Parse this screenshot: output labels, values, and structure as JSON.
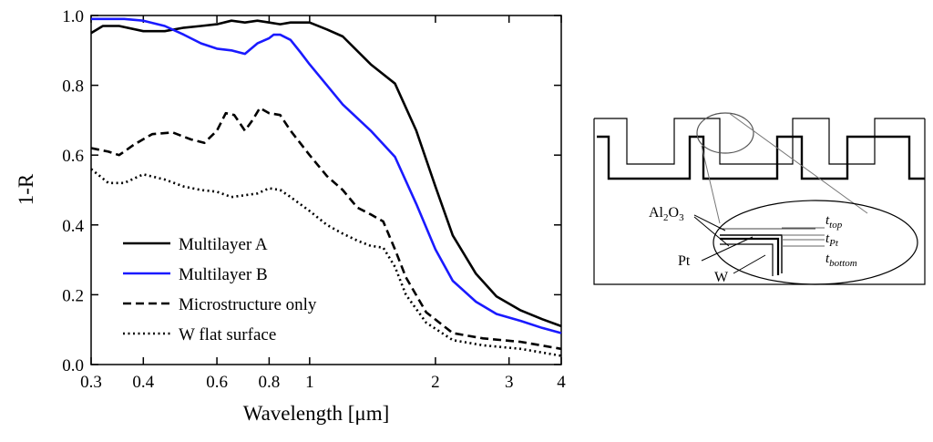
{
  "chart_data": {
    "type": "line",
    "xscale": "log",
    "xlabel": "Wavelength [μm]",
    "ylabel": "1-R",
    "xlim": [
      0.3,
      4
    ],
    "ylim": [
      0,
      1.0
    ],
    "xticks": [
      {
        "value": 0.3,
        "label": "0.3"
      },
      {
        "value": 0.4,
        "label": "0.4"
      },
      {
        "value": 0.6,
        "label": "0.6"
      },
      {
        "value": 0.8,
        "label": "0.8"
      },
      {
        "value": 1,
        "label": "1"
      },
      {
        "value": 2,
        "label": "2"
      },
      {
        "value": 3,
        "label": "3"
      },
      {
        "value": 4,
        "label": "4"
      }
    ],
    "yticks": [
      {
        "value": 0.0,
        "label": "0.0"
      },
      {
        "value": 0.2,
        "label": "0.2"
      },
      {
        "value": 0.4,
        "label": "0.4"
      },
      {
        "value": 0.6,
        "label": "0.6"
      },
      {
        "value": 0.8,
        "label": "0.8"
      },
      {
        "value": 1.0,
        "label": "1.0"
      }
    ],
    "grid": false,
    "legend_position": "lower-left",
    "series": [
      {
        "name": "Multilayer A",
        "color": "#000000",
        "dash": "solid",
        "points": [
          [
            0.3,
            0.95
          ],
          [
            0.32,
            0.97
          ],
          [
            0.35,
            0.97
          ],
          [
            0.4,
            0.955
          ],
          [
            0.45,
            0.955
          ],
          [
            0.5,
            0.965
          ],
          [
            0.55,
            0.97
          ],
          [
            0.6,
            0.975
          ],
          [
            0.65,
            0.985
          ],
          [
            0.7,
            0.98
          ],
          [
            0.75,
            0.985
          ],
          [
            0.8,
            0.98
          ],
          [
            0.85,
            0.975
          ],
          [
            0.9,
            0.98
          ],
          [
            1.0,
            0.98
          ],
          [
            1.1,
            0.96
          ],
          [
            1.2,
            0.94
          ],
          [
            1.4,
            0.86
          ],
          [
            1.6,
            0.805
          ],
          [
            1.8,
            0.67
          ],
          [
            2.0,
            0.51
          ],
          [
            2.2,
            0.37
          ],
          [
            2.5,
            0.26
          ],
          [
            2.8,
            0.195
          ],
          [
            3.2,
            0.155
          ],
          [
            3.6,
            0.13
          ],
          [
            4.0,
            0.11
          ]
        ]
      },
      {
        "name": "Multilayer B",
        "color": "#1a1aff",
        "dash": "solid",
        "points": [
          [
            0.3,
            0.99
          ],
          [
            0.33,
            0.99
          ],
          [
            0.36,
            0.99
          ],
          [
            0.4,
            0.985
          ],
          [
            0.45,
            0.97
          ],
          [
            0.5,
            0.945
          ],
          [
            0.55,
            0.92
          ],
          [
            0.6,
            0.905
          ],
          [
            0.65,
            0.9
          ],
          [
            0.7,
            0.89
          ],
          [
            0.75,
            0.92
          ],
          [
            0.8,
            0.935
          ],
          [
            0.82,
            0.945
          ],
          [
            0.85,
            0.945
          ],
          [
            0.9,
            0.93
          ],
          [
            0.95,
            0.895
          ],
          [
            1.0,
            0.86
          ],
          [
            1.1,
            0.8
          ],
          [
            1.2,
            0.745
          ],
          [
            1.4,
            0.67
          ],
          [
            1.6,
            0.595
          ],
          [
            1.8,
            0.46
          ],
          [
            2.0,
            0.33
          ],
          [
            2.2,
            0.24
          ],
          [
            2.5,
            0.18
          ],
          [
            2.8,
            0.145
          ],
          [
            3.2,
            0.125
          ],
          [
            3.6,
            0.105
          ],
          [
            4.0,
            0.09
          ]
        ]
      },
      {
        "name": "Microstructure only",
        "color": "#000000",
        "dash": "dashed",
        "points": [
          [
            0.3,
            0.62
          ],
          [
            0.33,
            0.61
          ],
          [
            0.35,
            0.6
          ],
          [
            0.38,
            0.63
          ],
          [
            0.42,
            0.66
          ],
          [
            0.47,
            0.665
          ],
          [
            0.52,
            0.645
          ],
          [
            0.56,
            0.635
          ],
          [
            0.6,
            0.67
          ],
          [
            0.63,
            0.72
          ],
          [
            0.66,
            0.715
          ],
          [
            0.7,
            0.67
          ],
          [
            0.73,
            0.7
          ],
          [
            0.76,
            0.735
          ],
          [
            0.8,
            0.72
          ],
          [
            0.85,
            0.715
          ],
          [
            0.9,
            0.67
          ],
          [
            1.0,
            0.6
          ],
          [
            1.1,
            0.54
          ],
          [
            1.2,
            0.5
          ],
          [
            1.3,
            0.45
          ],
          [
            1.4,
            0.43
          ],
          [
            1.5,
            0.41
          ],
          [
            1.6,
            0.33
          ],
          [
            1.7,
            0.25
          ],
          [
            1.9,
            0.15
          ],
          [
            2.2,
            0.09
          ],
          [
            2.6,
            0.075
          ],
          [
            3.2,
            0.065
          ],
          [
            4.0,
            0.045
          ]
        ]
      },
      {
        "name": "W flat surface",
        "color": "#000000",
        "dash": "dotted",
        "points": [
          [
            0.3,
            0.56
          ],
          [
            0.33,
            0.52
          ],
          [
            0.36,
            0.52
          ],
          [
            0.4,
            0.545
          ],
          [
            0.45,
            0.53
          ],
          [
            0.5,
            0.51
          ],
          [
            0.55,
            0.5
          ],
          [
            0.6,
            0.495
          ],
          [
            0.65,
            0.48
          ],
          [
            0.7,
            0.485
          ],
          [
            0.75,
            0.49
          ],
          [
            0.8,
            0.505
          ],
          [
            0.85,
            0.5
          ],
          [
            0.9,
            0.48
          ],
          [
            1.0,
            0.44
          ],
          [
            1.1,
            0.4
          ],
          [
            1.2,
            0.375
          ],
          [
            1.3,
            0.355
          ],
          [
            1.4,
            0.34
          ],
          [
            1.5,
            0.335
          ],
          [
            1.6,
            0.28
          ],
          [
            1.7,
            0.2
          ],
          [
            1.9,
            0.12
          ],
          [
            2.2,
            0.07
          ],
          [
            2.6,
            0.055
          ],
          [
            3.2,
            0.045
          ],
          [
            4.0,
            0.025
          ]
        ]
      }
    ]
  },
  "diagram": {
    "labels": {
      "al2o3_main": "Al",
      "al2o3_sub1": "2",
      "al2o3_o": "O",
      "al2o3_sub2": "3",
      "pt": "Pt",
      "w": "W",
      "t_top": "t",
      "t_top_sub": "top",
      "t_pt": "t",
      "t_pt_sub": "Pt",
      "t_bottom": "t",
      "t_bottom_sub": "bottom"
    }
  }
}
